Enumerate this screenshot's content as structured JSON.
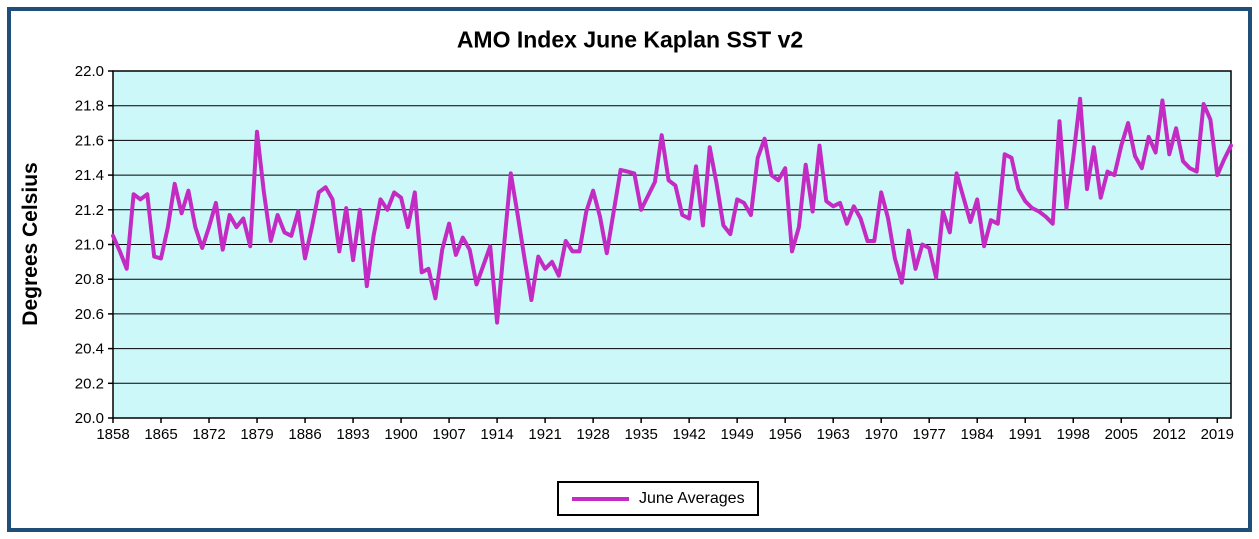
{
  "title": "AMO Index June Kaplan SST v2",
  "y_axis": {
    "label": "Degrees Celsius",
    "min": 20.0,
    "max": 22.0,
    "step": 0.2
  },
  "x_axis": {
    "tick_years": [
      1858,
      1865,
      1872,
      1879,
      1886,
      1893,
      1900,
      1907,
      1914,
      1921,
      1928,
      1935,
      1942,
      1949,
      1956,
      1963,
      1970,
      1977,
      1984,
      1991,
      1998,
      2005,
      2012,
      2019
    ]
  },
  "legend": {
    "label": "June Averages"
  },
  "colors": {
    "line": "#C32CC3",
    "plot_background": "#CDF8FA",
    "gridline": "#000000",
    "axis": "#000000",
    "frame_border": "#1F4E79",
    "page_background": "#FFFFFF"
  },
  "chart_data": {
    "type": "line",
    "title": "AMO Index June Kaplan SST v2",
    "xlabel": "",
    "ylabel": "Degrees Celsius",
    "ylim": [
      20.0,
      22.0
    ],
    "xlim": [
      1858,
      2021
    ],
    "y_tick_step": 0.2,
    "x_tick_labels": [
      1858,
      1865,
      1872,
      1879,
      1886,
      1893,
      1900,
      1907,
      1914,
      1921,
      1928,
      1935,
      1942,
      1949,
      1956,
      1963,
      1970,
      1977,
      1984,
      1991,
      1998,
      2005,
      2012,
      2019
    ],
    "grid": true,
    "legend_position": "bottom-center",
    "series": [
      {
        "name": "June Averages",
        "color": "#C32CC3",
        "x": [
          1858,
          1859,
          1860,
          1861,
          1862,
          1863,
          1864,
          1865,
          1866,
          1867,
          1868,
          1869,
          1870,
          1871,
          1872,
          1873,
          1874,
          1875,
          1876,
          1877,
          1878,
          1879,
          1880,
          1881,
          1882,
          1883,
          1884,
          1885,
          1886,
          1887,
          1888,
          1889,
          1890,
          1891,
          1892,
          1893,
          1894,
          1895,
          1896,
          1897,
          1898,
          1899,
          1900,
          1901,
          1902,
          1903,
          1904,
          1905,
          1906,
          1907,
          1908,
          1909,
          1910,
          1911,
          1912,
          1913,
          1914,
          1915,
          1916,
          1917,
          1918,
          1919,
          1920,
          1921,
          1922,
          1923,
          1924,
          1925,
          1926,
          1927,
          1928,
          1929,
          1930,
          1931,
          1932,
          1933,
          1934,
          1935,
          1936,
          1937,
          1938,
          1939,
          1940,
          1941,
          1942,
          1943,
          1944,
          1945,
          1946,
          1947,
          1948,
          1949,
          1950,
          1951,
          1952,
          1953,
          1954,
          1955,
          1956,
          1957,
          1958,
          1959,
          1960,
          1961,
          1962,
          1963,
          1964,
          1965,
          1966,
          1967,
          1968,
          1969,
          1970,
          1971,
          1972,
          1973,
          1974,
          1975,
          1976,
          1977,
          1978,
          1979,
          1980,
          1981,
          1982,
          1983,
          1984,
          1985,
          1986,
          1987,
          1988,
          1989,
          1990,
          1991,
          1992,
          1993,
          1994,
          1995,
          1996,
          1997,
          1998,
          1999,
          2000,
          2001,
          2002,
          2003,
          2004,
          2005,
          2006,
          2007,
          2008,
          2009,
          2010,
          2011,
          2012,
          2013,
          2014,
          2015,
          2016,
          2017,
          2018,
          2019,
          2020,
          2021
        ],
        "values": [
          21.05,
          20.96,
          20.86,
          21.29,
          21.26,
          21.29,
          20.93,
          20.92,
          21.1,
          21.35,
          21.18,
          21.31,
          21.1,
          20.98,
          21.1,
          21.24,
          20.97,
          21.17,
          21.1,
          21.15,
          20.99,
          21.65,
          21.3,
          21.02,
          21.17,
          21.07,
          21.05,
          21.19,
          20.92,
          21.1,
          21.3,
          21.33,
          21.26,
          20.96,
          21.21,
          20.91,
          21.2,
          20.76,
          21.05,
          21.26,
          21.2,
          21.3,
          21.27,
          21.1,
          21.3,
          20.84,
          20.86,
          20.69,
          20.97,
          21.12,
          20.94,
          21.04,
          20.97,
          20.77,
          20.88,
          20.99,
          20.55,
          20.99,
          21.41,
          21.17,
          20.92,
          20.68,
          20.93,
          20.86,
          20.9,
          20.82,
          21.02,
          20.96,
          20.96,
          21.19,
          21.31,
          21.16,
          20.95,
          21.19,
          21.43,
          21.42,
          21.41,
          21.2,
          21.28,
          21.36,
          21.63,
          21.37,
          21.34,
          21.17,
          21.15,
          21.45,
          21.11,
          21.56,
          21.35,
          21.11,
          21.06,
          21.26,
          21.24,
          21.17,
          21.5,
          21.61,
          21.4,
          21.37,
          21.44,
          20.96,
          21.1,
          21.46,
          21.19,
          21.57,
          21.25,
          21.22,
          21.24,
          21.12,
          21.22,
          21.15,
          21.02,
          21.02,
          21.3,
          21.15,
          20.92,
          20.78,
          21.08,
          20.86,
          21.0,
          20.98,
          20.81,
          21.19,
          21.07,
          21.41,
          21.27,
          21.13,
          21.26,
          20.99,
          21.14,
          21.12,
          21.52,
          21.5,
          21.32,
          21.25,
          21.21,
          21.19,
          21.16,
          21.12,
          21.71,
          21.21,
          21.5,
          21.84,
          21.32,
          21.56,
          21.27,
          21.42,
          21.4,
          21.57,
          21.7,
          21.51,
          21.44,
          21.62,
          21.53,
          21.83,
          21.52,
          21.67,
          21.48,
          21.44,
          21.42,
          21.81,
          21.72,
          21.4,
          21.49,
          21.57
        ]
      }
    ]
  }
}
